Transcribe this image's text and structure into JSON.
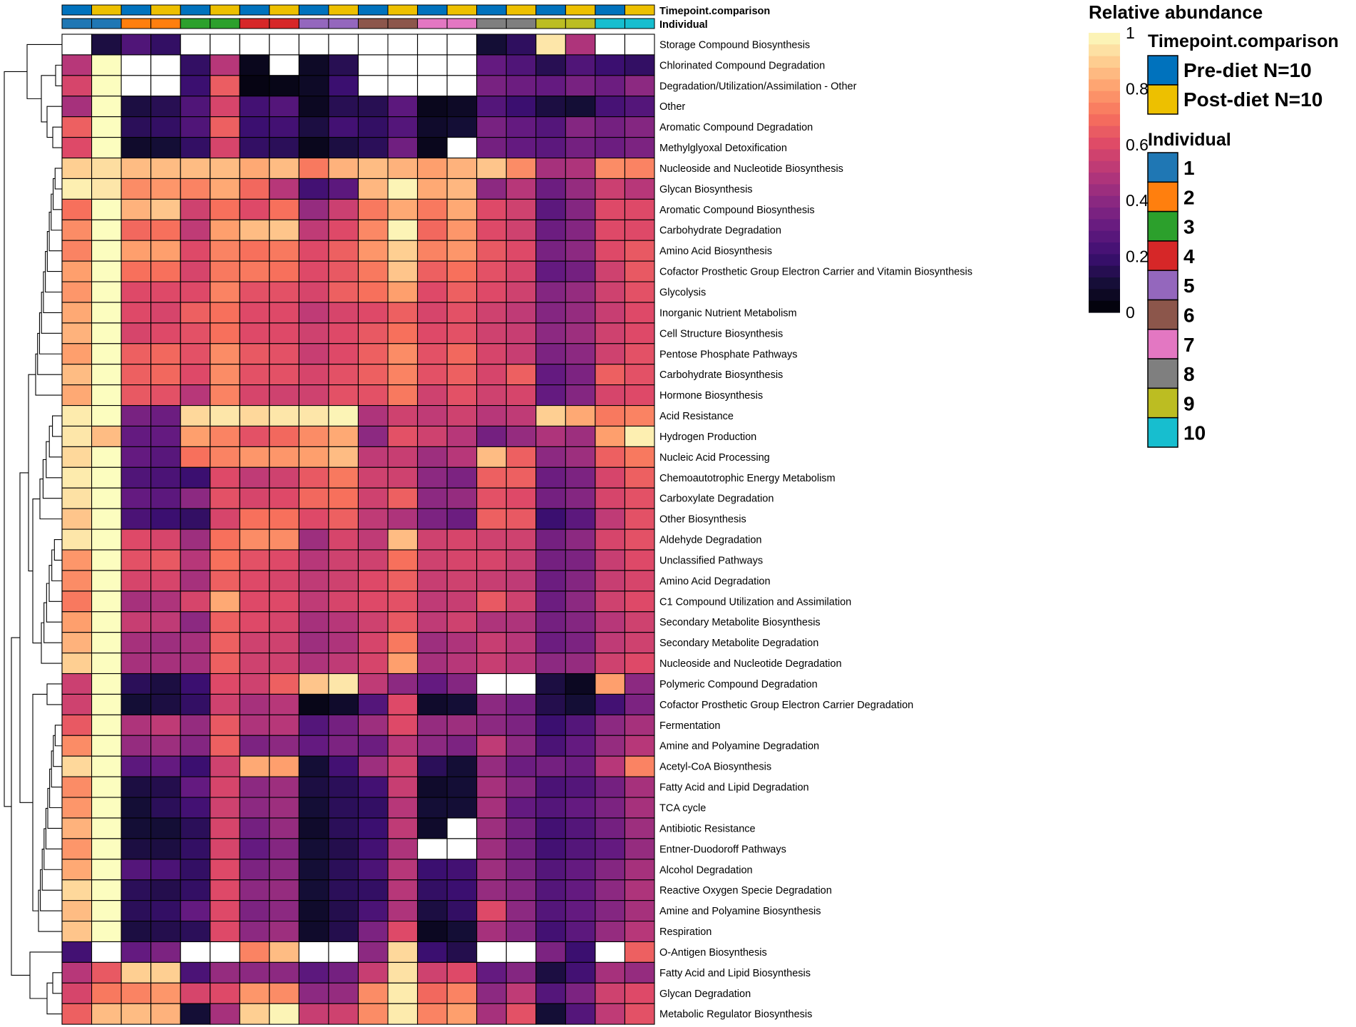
{
  "chart_data": {
    "type": "heatmap",
    "title": "",
    "value_range": [
      0,
      1
    ],
    "colormap": [
      "#000004",
      "#140e36",
      "#3b0f70",
      "#641a80",
      "#8c2981",
      "#b73779",
      "#de4968",
      "#f7705c",
      "#fe9f6d",
      "#fecf92",
      "#fcfdbf"
    ],
    "missing_color": "#ffffff",
    "rows": [
      "Storage Compound Biosynthesis",
      "Chlorinated Compound Degradation",
      "Degradation/Utilization/Assimilation - Other",
      "Other",
      "Aromatic Compound Degradation",
      "Methylglyoxal Detoxification",
      "Nucleoside and Nucleotide Biosynthesis",
      "Glycan Biosynthesis",
      "Aromatic Compound Biosynthesis",
      "Carbohydrate Degradation",
      "Amino Acid Biosynthesis",
      "Cofactor Prosthetic Group Electron Carrier and Vitamin Biosynthesis",
      "Glycolysis",
      "Inorganic Nutrient Metabolism",
      "Cell Structure Biosynthesis",
      "Pentose Phosphate Pathways",
      "Carbohydrate Biosynthesis",
      "Hormone Biosynthesis",
      "Acid Resistance",
      "Hydrogen Production",
      "Nucleic Acid Processing",
      "Chemoautotrophic Energy Metabolism",
      "Carboxylate Degradation",
      "Other Biosynthesis",
      "Aldehyde Degradation",
      "Unclassified Pathways",
      "Amino Acid Degradation",
      "C1 Compound Utilization and Assimilation",
      "Secondary Metabolite Biosynthesis",
      "Secondary Metabolite Degradation",
      "Nucleoside and Nucleotide Degradation",
      "Polymeric Compound Degradation",
      "Cofactor Prosthetic Group Electron Carrier Degradation",
      "Fermentation",
      "Amine and Polyamine Degradation",
      "Acetyl-CoA Biosynthesis",
      "Fatty Acid and Lipid Degradation",
      "TCA cycle",
      "Antibiotic Resistance",
      "Entner-Duodoroff Pathways",
      "Alcohol Degradation",
      "Reactive Oxygen Specie Degradation",
      "Amine and Polyamine Biosynthesis",
      "Respiration",
      "O-Antigen Biosynthesis",
      "Fatty Acid and Lipid Biosynthesis",
      "Glycan Degradation",
      "Metabolic Regulator Biosynthesis"
    ],
    "column_timepoint": [
      "Pre-diet",
      "Post-diet",
      "Pre-diet",
      "Post-diet",
      "Pre-diet",
      "Post-diet",
      "Pre-diet",
      "Post-diet",
      "Pre-diet",
      "Post-diet",
      "Pre-diet",
      "Post-diet",
      "Pre-diet",
      "Post-diet",
      "Pre-diet",
      "Post-diet",
      "Pre-diet",
      "Post-diet",
      "Pre-diet",
      "Post-diet"
    ],
    "column_individual": [
      1,
      1,
      2,
      2,
      3,
      3,
      4,
      4,
      5,
      5,
      6,
      6,
      7,
      7,
      8,
      8,
      9,
      9,
      10,
      10
    ],
    "values": [
      [
        null,
        0.12,
        0.25,
        0.18,
        null,
        null,
        null,
        null,
        null,
        null,
        null,
        null,
        null,
        null,
        0.1,
        0.17,
        0.95,
        0.48,
        null,
        null
      ],
      [
        0.5,
        1.0,
        null,
        null,
        0.18,
        0.5,
        0.05,
        null,
        0.07,
        0.15,
        null,
        null,
        null,
        null,
        0.3,
        0.25,
        0.15,
        0.25,
        0.2,
        0.18
      ],
      [
        0.58,
        1.0,
        null,
        null,
        0.2,
        0.65,
        0.03,
        0.04,
        0.07,
        0.2,
        null,
        null,
        null,
        null,
        0.35,
        0.32,
        0.3,
        0.35,
        0.32,
        0.4
      ],
      [
        0.46,
        1.0,
        0.12,
        0.15,
        0.25,
        0.58,
        0.22,
        0.26,
        0.06,
        0.15,
        0.15,
        0.28,
        0.05,
        0.07,
        0.26,
        0.2,
        0.12,
        0.1,
        0.23,
        0.26
      ],
      [
        0.66,
        1.0,
        0.16,
        0.18,
        0.25,
        0.66,
        0.2,
        0.22,
        0.12,
        0.22,
        0.18,
        0.26,
        0.08,
        0.1,
        0.35,
        0.3,
        0.26,
        0.38,
        0.34,
        0.38
      ],
      [
        0.6,
        1.0,
        0.08,
        0.1,
        0.18,
        0.58,
        0.18,
        0.16,
        0.05,
        0.12,
        0.16,
        0.33,
        0.05,
        null,
        0.34,
        0.3,
        0.28,
        0.34,
        0.32,
        0.36
      ],
      [
        0.9,
        0.93,
        0.86,
        0.86,
        0.86,
        0.86,
        0.82,
        0.86,
        0.72,
        0.84,
        0.86,
        0.84,
        0.8,
        0.84,
        0.88,
        0.76,
        0.46,
        0.48,
        0.76,
        0.74
      ],
      [
        0.97,
        0.95,
        0.76,
        0.78,
        0.74,
        0.82,
        0.68,
        0.5,
        0.22,
        0.28,
        0.85,
        0.98,
        0.82,
        0.85,
        0.4,
        0.5,
        0.32,
        0.42,
        0.55,
        0.5
      ],
      [
        0.7,
        1.0,
        0.84,
        0.88,
        0.56,
        0.7,
        0.6,
        0.7,
        0.42,
        0.55,
        0.72,
        0.82,
        0.72,
        0.82,
        0.6,
        0.56,
        0.28,
        0.38,
        0.6,
        0.6
      ],
      [
        0.76,
        1.0,
        0.68,
        0.7,
        0.52,
        0.8,
        0.86,
        0.88,
        0.52,
        0.6,
        0.75,
        0.98,
        0.68,
        0.78,
        0.6,
        0.56,
        0.32,
        0.38,
        0.6,
        0.6
      ],
      [
        0.74,
        1.0,
        0.8,
        0.8,
        0.6,
        0.74,
        0.7,
        0.72,
        0.6,
        0.66,
        0.78,
        0.9,
        0.74,
        0.78,
        0.64,
        0.6,
        0.35,
        0.4,
        0.6,
        0.64
      ],
      [
        0.8,
        1.0,
        0.7,
        0.7,
        0.58,
        0.72,
        0.72,
        0.7,
        0.6,
        0.64,
        0.72,
        0.88,
        0.66,
        0.7,
        0.62,
        0.58,
        0.3,
        0.34,
        0.56,
        0.64
      ],
      [
        0.78,
        1.0,
        0.6,
        0.6,
        0.6,
        0.74,
        0.62,
        0.62,
        0.58,
        0.66,
        0.7,
        0.8,
        0.6,
        0.66,
        0.6,
        0.56,
        0.38,
        0.42,
        0.56,
        0.62
      ],
      [
        0.82,
        1.0,
        0.6,
        0.58,
        0.66,
        0.7,
        0.6,
        0.6,
        0.52,
        0.58,
        0.6,
        0.66,
        0.58,
        0.62,
        0.56,
        0.52,
        0.38,
        0.42,
        0.54,
        0.6
      ],
      [
        0.84,
        1.0,
        0.58,
        0.6,
        0.62,
        0.7,
        0.6,
        0.6,
        0.56,
        0.6,
        0.64,
        0.7,
        0.6,
        0.62,
        0.56,
        0.54,
        0.4,
        0.44,
        0.56,
        0.6
      ],
      [
        0.8,
        1.0,
        0.66,
        0.68,
        0.62,
        0.76,
        0.64,
        0.62,
        0.54,
        0.6,
        0.66,
        0.76,
        0.62,
        0.68,
        0.58,
        0.54,
        0.36,
        0.4,
        0.56,
        0.62
      ],
      [
        0.86,
        1.0,
        0.66,
        0.68,
        0.6,
        0.76,
        0.62,
        0.62,
        0.58,
        0.62,
        0.66,
        0.74,
        0.62,
        0.66,
        0.58,
        0.66,
        0.3,
        0.36,
        0.66,
        0.62
      ],
      [
        0.82,
        1.0,
        0.64,
        0.62,
        0.5,
        0.74,
        0.58,
        0.56,
        0.56,
        0.62,
        0.62,
        0.72,
        0.56,
        0.62,
        0.56,
        0.58,
        0.3,
        0.38,
        0.58,
        0.6
      ],
      [
        0.96,
        1.0,
        0.35,
        0.32,
        0.92,
        0.95,
        0.92,
        0.95,
        0.95,
        0.98,
        0.48,
        0.56,
        0.52,
        0.56,
        0.5,
        0.52,
        0.9,
        0.82,
        0.72,
        0.74
      ],
      [
        0.95,
        0.86,
        0.3,
        0.3,
        0.8,
        0.74,
        0.62,
        0.68,
        0.76,
        0.82,
        0.4,
        0.62,
        0.56,
        0.5,
        0.34,
        0.42,
        0.48,
        0.44,
        0.8,
        0.97
      ],
      [
        0.92,
        1.0,
        0.3,
        0.27,
        0.7,
        0.74,
        0.78,
        0.78,
        0.8,
        0.86,
        0.52,
        0.54,
        0.44,
        0.5,
        0.86,
        0.66,
        0.4,
        0.44,
        0.66,
        0.72
      ],
      [
        0.96,
        1.0,
        0.25,
        0.24,
        0.2,
        0.6,
        0.52,
        0.56,
        0.64,
        0.72,
        0.56,
        0.56,
        0.4,
        0.36,
        0.66,
        0.66,
        0.32,
        0.36,
        0.58,
        0.66
      ],
      [
        0.94,
        1.0,
        0.3,
        0.28,
        0.4,
        0.62,
        0.58,
        0.6,
        0.68,
        0.7,
        0.56,
        0.66,
        0.4,
        0.42,
        0.62,
        0.6,
        0.34,
        0.38,
        0.58,
        0.62
      ],
      [
        0.88,
        1.0,
        0.24,
        0.2,
        0.18,
        0.58,
        0.7,
        0.7,
        0.6,
        0.66,
        0.52,
        0.48,
        0.36,
        0.32,
        0.66,
        0.64,
        0.2,
        0.28,
        0.52,
        0.62
      ],
      [
        0.95,
        1.0,
        0.6,
        0.58,
        0.44,
        0.7,
        0.76,
        0.76,
        0.44,
        0.58,
        0.52,
        0.86,
        0.56,
        0.58,
        0.56,
        0.56,
        0.34,
        0.4,
        0.58,
        0.62
      ],
      [
        0.78,
        1.0,
        0.62,
        0.64,
        0.5,
        0.7,
        0.62,
        0.6,
        0.5,
        0.56,
        0.56,
        0.7,
        0.56,
        0.58,
        0.58,
        0.54,
        0.34,
        0.36,
        0.54,
        0.6
      ],
      [
        0.76,
        1.0,
        0.58,
        0.58,
        0.46,
        0.66,
        0.6,
        0.58,
        0.52,
        0.56,
        0.6,
        0.66,
        0.54,
        0.56,
        0.54,
        0.52,
        0.32,
        0.38,
        0.54,
        0.58
      ],
      [
        0.72,
        1.0,
        0.46,
        0.48,
        0.58,
        0.82,
        0.6,
        0.6,
        0.52,
        0.58,
        0.6,
        0.62,
        0.52,
        0.54,
        0.64,
        0.56,
        0.32,
        0.4,
        0.56,
        0.6
      ],
      [
        0.8,
        1.0,
        0.54,
        0.52,
        0.4,
        0.66,
        0.6,
        0.58,
        0.46,
        0.5,
        0.56,
        0.64,
        0.52,
        0.56,
        0.48,
        0.48,
        0.34,
        0.38,
        0.5,
        0.56
      ],
      [
        0.84,
        1.0,
        0.46,
        0.44,
        0.46,
        0.66,
        0.56,
        0.56,
        0.44,
        0.48,
        0.58,
        0.72,
        0.44,
        0.48,
        0.54,
        0.5,
        0.32,
        0.36,
        0.52,
        0.56
      ],
      [
        0.9,
        1.0,
        0.46,
        0.46,
        0.46,
        0.66,
        0.56,
        0.56,
        0.48,
        0.52,
        0.58,
        0.8,
        0.46,
        0.5,
        0.54,
        0.5,
        0.4,
        0.42,
        0.56,
        0.6
      ],
      [
        0.55,
        1.0,
        0.16,
        0.12,
        0.2,
        0.6,
        0.56,
        0.66,
        0.88,
        0.95,
        0.52,
        0.4,
        0.3,
        0.38,
        null,
        null,
        0.12,
        0.06,
        0.8,
        0.4
      ],
      [
        0.56,
        1.0,
        0.1,
        0.12,
        0.18,
        0.56,
        0.46,
        0.5,
        0.04,
        0.08,
        0.26,
        0.6,
        0.08,
        0.1,
        0.4,
        0.34,
        0.14,
        0.1,
        0.22,
        0.36
      ],
      [
        0.64,
        1.0,
        0.48,
        0.52,
        0.42,
        0.64,
        0.48,
        0.5,
        0.26,
        0.34,
        0.44,
        0.6,
        0.42,
        0.44,
        0.4,
        0.36,
        0.2,
        0.26,
        0.4,
        0.46
      ],
      [
        0.76,
        1.0,
        0.42,
        0.44,
        0.38,
        0.66,
        0.36,
        0.4,
        0.3,
        0.36,
        0.32,
        0.5,
        0.4,
        0.36,
        0.52,
        0.4,
        0.24,
        0.3,
        0.42,
        0.5
      ],
      [
        0.92,
        1.0,
        0.28,
        0.3,
        0.2,
        0.56,
        0.82,
        0.8,
        0.1,
        0.22,
        0.44,
        0.56,
        0.16,
        0.1,
        0.42,
        0.32,
        0.34,
        0.32,
        0.5,
        0.74
      ],
      [
        0.76,
        1.0,
        0.12,
        0.14,
        0.3,
        0.58,
        0.4,
        0.44,
        0.12,
        0.16,
        0.22,
        0.54,
        0.08,
        0.1,
        0.46,
        0.38,
        0.24,
        0.26,
        0.34,
        0.46
      ],
      [
        0.78,
        1.0,
        0.1,
        0.16,
        0.22,
        0.56,
        0.4,
        0.44,
        0.1,
        0.16,
        0.18,
        0.5,
        0.1,
        0.1,
        0.46,
        0.3,
        0.26,
        0.3,
        0.36,
        0.46
      ],
      [
        0.84,
        1.0,
        0.1,
        0.1,
        0.16,
        0.58,
        0.34,
        0.42,
        0.08,
        0.16,
        0.2,
        0.52,
        0.08,
        null,
        0.44,
        0.34,
        0.22,
        0.26,
        0.34,
        0.44
      ],
      [
        0.78,
        1.0,
        0.12,
        0.12,
        0.18,
        0.58,
        0.3,
        0.38,
        0.1,
        0.14,
        0.22,
        0.48,
        null,
        null,
        0.44,
        0.34,
        0.22,
        0.26,
        0.3,
        0.42
      ],
      [
        0.82,
        1.0,
        0.26,
        0.24,
        0.18,
        0.6,
        0.36,
        0.4,
        0.1,
        0.16,
        0.24,
        0.5,
        0.2,
        0.22,
        0.44,
        0.36,
        0.26,
        0.3,
        0.38,
        0.46
      ],
      [
        0.92,
        1.0,
        0.16,
        0.14,
        0.18,
        0.6,
        0.4,
        0.42,
        0.1,
        0.16,
        0.18,
        0.5,
        0.18,
        0.2,
        0.42,
        0.38,
        0.26,
        0.3,
        0.4,
        0.48
      ],
      [
        0.86,
        1.0,
        0.16,
        0.18,
        0.3,
        0.6,
        0.36,
        0.4,
        0.08,
        0.14,
        0.24,
        0.48,
        0.12,
        0.18,
        0.6,
        0.4,
        0.26,
        0.3,
        0.38,
        0.46
      ],
      [
        0.88,
        1.0,
        0.12,
        0.14,
        0.16,
        0.6,
        0.4,
        0.44,
        0.08,
        0.14,
        0.36,
        0.6,
        0.06,
        0.1,
        0.46,
        0.38,
        0.22,
        0.28,
        0.42,
        0.5
      ],
      [
        0.22,
        null,
        0.3,
        0.36,
        null,
        null,
        0.74,
        0.86,
        null,
        null,
        0.4,
        0.92,
        0.2,
        0.14,
        null,
        null,
        0.36,
        0.2,
        null,
        0.66
      ],
      [
        0.5,
        0.64,
        0.9,
        0.9,
        0.24,
        0.42,
        0.4,
        0.4,
        0.28,
        0.34,
        0.54,
        0.94,
        0.56,
        0.6,
        0.3,
        0.38,
        0.12,
        0.22,
        0.46,
        0.42
      ],
      [
        0.58,
        0.72,
        0.74,
        0.78,
        0.58,
        0.6,
        0.78,
        0.76,
        0.4,
        0.42,
        0.76,
        0.96,
        0.68,
        0.74,
        0.4,
        0.52,
        0.26,
        0.36,
        0.56,
        0.6
      ],
      [
        0.66,
        0.86,
        0.86,
        0.84,
        0.1,
        0.46,
        0.9,
        0.98,
        0.54,
        0.56,
        0.76,
        0.96,
        0.74,
        0.8,
        0.46,
        0.62,
        0.1,
        0.26,
        0.52,
        0.62
      ]
    ],
    "annotation_labels": {
      "top": "Timepoint.comparison",
      "bottom": "Individual"
    },
    "legend": {
      "colorbar_title": "Relative abundance",
      "colorbar_ticks": [
        "0",
        "0.2",
        "0.4",
        "0.6",
        "0.8",
        "1"
      ],
      "timepoint_title": "Timepoint.comparison",
      "timepoint_items": [
        {
          "label": "Pre-diet N=10",
          "color": "#0072bd"
        },
        {
          "label": "Post-diet N=10",
          "color": "#edc000"
        }
      ],
      "individual_title": "Individual",
      "individual_items": [
        {
          "label": "1",
          "color": "#1f77b4"
        },
        {
          "label": "2",
          "color": "#ff7f0e"
        },
        {
          "label": "3",
          "color": "#2ca02c"
        },
        {
          "label": "4",
          "color": "#d62728"
        },
        {
          "label": "5",
          "color": "#9467bd"
        },
        {
          "label": "6",
          "color": "#8c564b"
        },
        {
          "label": "7",
          "color": "#e377c2"
        },
        {
          "label": "8",
          "color": "#7f7f7f"
        },
        {
          "label": "9",
          "color": "#bcbd22"
        },
        {
          "label": "10",
          "color": "#17becf"
        }
      ]
    }
  }
}
